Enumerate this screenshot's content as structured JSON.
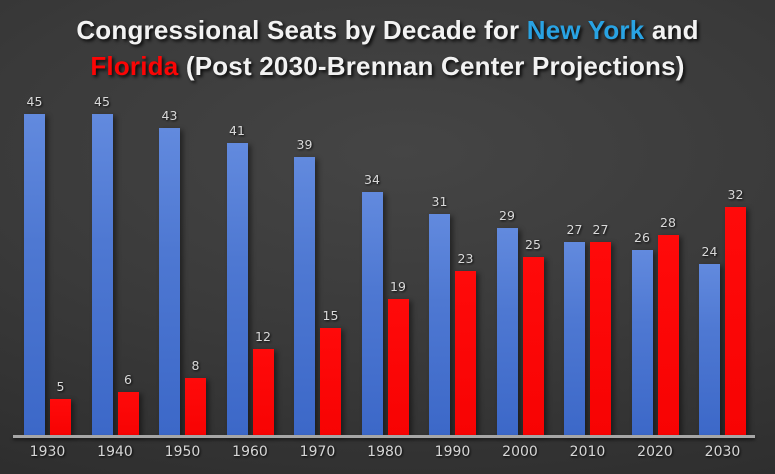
{
  "title": {
    "seg1": "Congressional Seats by Decade for ",
    "seg2": "New York",
    "seg3": " and",
    "seg4": "Florida",
    "seg5": " (Post 2030-Brennan Center Projections)"
  },
  "colors": {
    "new_york_accent": "#29a3e3",
    "florida_accent": "#fb0505",
    "new_york_bar": "#4472c4",
    "florida_bar": "#ff0000",
    "background": "#3a3a3a",
    "axis_line": "#a6a6a6",
    "label_text": "#d9d9d9",
    "title_text": "#f2f2f2"
  },
  "chart_data": {
    "type": "bar",
    "title": "Congressional Seats by Decade for New York and Florida (Post 2030-Brennan Center Projections)",
    "categories": [
      "1930",
      "1940",
      "1950",
      "1960",
      "1970",
      "1980",
      "1990",
      "2000",
      "2010",
      "2020",
      "2030"
    ],
    "series": [
      {
        "name": "New York",
        "color": "#4472c4",
        "values": [
          45,
          45,
          43,
          41,
          39,
          34,
          31,
          29,
          27,
          26,
          24
        ]
      },
      {
        "name": "Florida",
        "color": "#ff0000",
        "values": [
          5,
          6,
          8,
          12,
          15,
          19,
          23,
          25,
          27,
          28,
          32
        ]
      }
    ],
    "xlabel": "",
    "ylabel": "",
    "ylim": [
      0,
      45
    ],
    "grid": false,
    "legend_position": "none",
    "data_labels": true
  }
}
